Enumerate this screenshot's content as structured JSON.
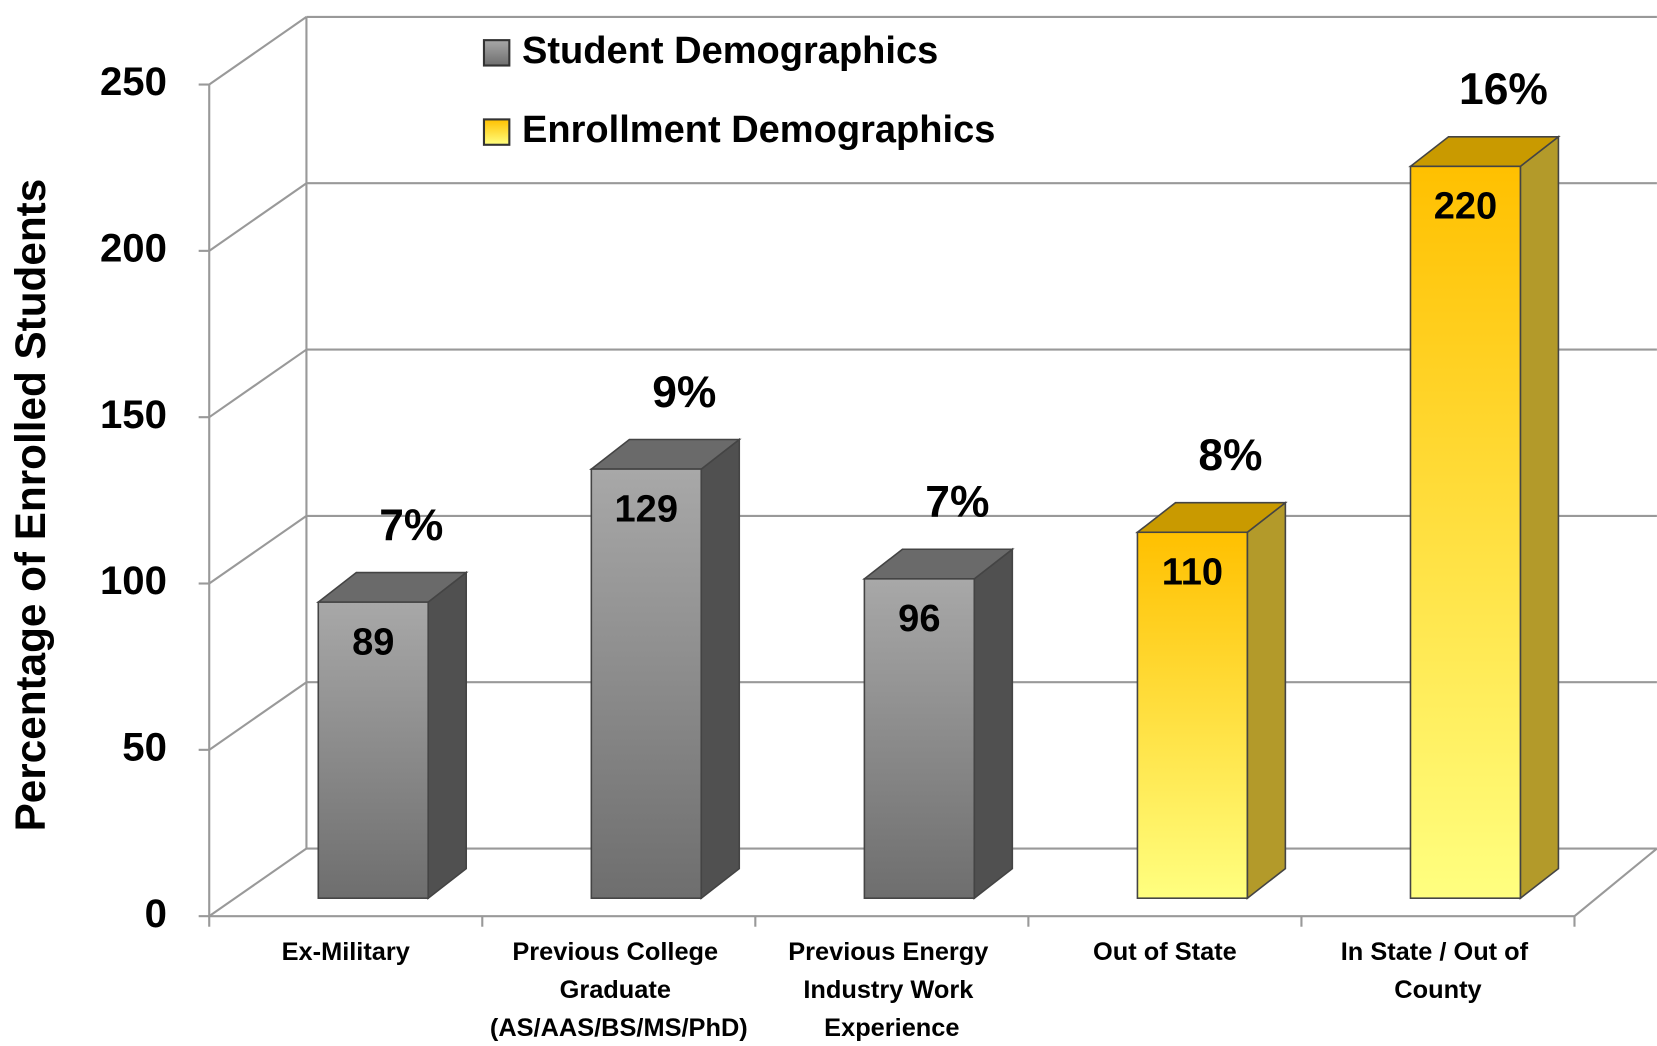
{
  "chart_data": {
    "type": "bar3d",
    "y_label": "Percentage of Enrolled Students",
    "categories": [
      "Ex-Military",
      "Previous College Graduate (AS/AAS/BS/MS/PhD)",
      "Previous Energy Industry Work Experience",
      "Out of State",
      "In State / Out of County"
    ],
    "series": [
      {
        "name": "Student Demographics",
        "color": "#8c8c8c",
        "values": [
          89,
          129,
          96,
          null,
          null
        ]
      },
      {
        "name": "Enrollment Demographics",
        "color": "#ffd400",
        "values": [
          null,
          null,
          null,
          110,
          220
        ]
      }
    ],
    "annotations": [
      "7%",
      "9%",
      "7%",
      "8%",
      "16%"
    ],
    "ylim": [
      0,
      250
    ],
    "yticks": [
      0,
      50,
      100,
      150,
      200,
      250
    ],
    "grid": true,
    "legend": "top"
  }
}
